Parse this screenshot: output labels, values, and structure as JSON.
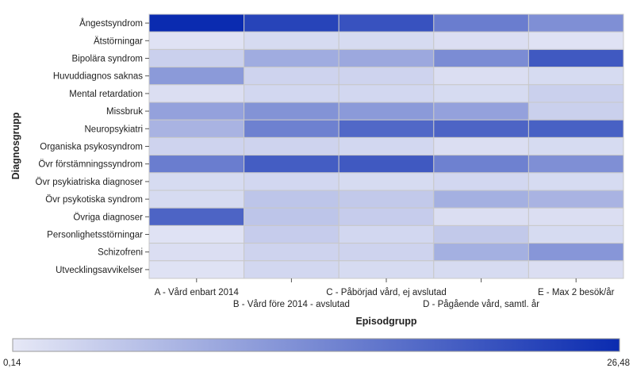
{
  "chart_data": {
    "type": "heatmap",
    "title": "",
    "xlabel": "Episodgrupp",
    "ylabel": "Diagnosgrupp",
    "x_categories": [
      "A - Vård enbart 2014",
      "B - Vård före 2014 - avslutad",
      "C - Påbörjad vård, ej avslutad",
      "D - Pågående vård, samtl. år",
      "E - Max 2 besök/år"
    ],
    "y_categories": [
      "Ångestsyndrom",
      "Ätstörningar",
      "Bipolära syndrom",
      "Huvuddiagnos saknas",
      "Mental retardation",
      "Missbruk",
      "Neuropsykiatri",
      "Organiska psykosyndrom",
      "Övr förstämningssyndrom",
      "Övr psykiatriska diagnoser",
      "Övr psykotiska syndrom",
      "Övriga diagnoser",
      "Personlighetsstörningar",
      "Schizofreni",
      "Utvecklingsavvikelser"
    ],
    "values": [
      [
        26.48,
        23.0,
        21.0,
        15.0,
        12.5
      ],
      [
        1.0,
        2.0,
        2.0,
        1.5,
        1.0
      ],
      [
        3.5,
        8.5,
        9.0,
        13.0,
        20.0
      ],
      [
        11.0,
        3.0,
        3.0,
        1.5,
        2.0
      ],
      [
        1.5,
        2.5,
        2.5,
        2.0,
        3.5
      ],
      [
        10.0,
        12.0,
        11.0,
        10.0,
        3.5
      ],
      [
        7.5,
        14.5,
        18.0,
        18.5,
        19.0
      ],
      [
        3.0,
        3.0,
        2.5,
        1.5,
        2.0
      ],
      [
        15.0,
        19.5,
        20.0,
        14.5,
        12.5
      ],
      [
        2.0,
        2.5,
        2.0,
        2.5,
        2.0
      ],
      [
        2.0,
        5.0,
        4.5,
        8.0,
        7.5
      ],
      [
        18.5,
        5.0,
        4.0,
        1.5,
        1.5
      ],
      [
        1.0,
        4.0,
        2.5,
        4.5,
        2.0
      ],
      [
        1.5,
        3.0,
        3.0,
        8.0,
        11.5
      ],
      [
        1.0,
        2.5,
        2.0,
        2.0,
        1.5
      ]
    ],
    "colorbar": {
      "min": 0.14,
      "max": 26.48,
      "min_label": "0,14",
      "max_label": "26,48",
      "color_low": "#e6e8f6",
      "color_high": "#0a2bb0"
    },
    "legend_position": "bottom"
  }
}
